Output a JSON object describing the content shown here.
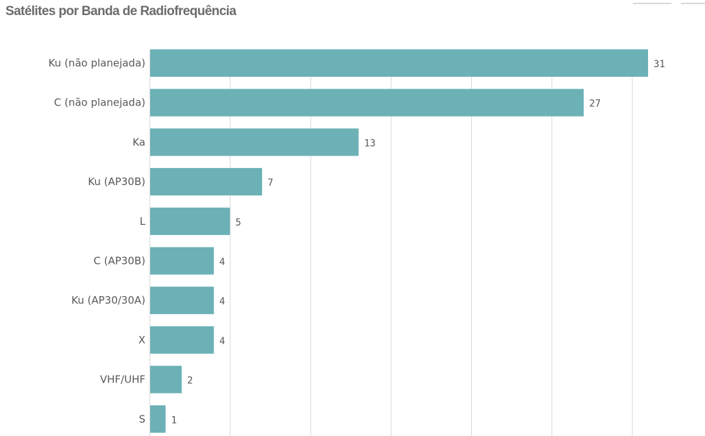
{
  "chart_data": {
    "type": "bar",
    "orientation": "horizontal",
    "title": "Satélites por Banda de Radiofrequência",
    "categories": [
      "Ku (não planejada)",
      "C (não planejada)",
      "Ka",
      "Ku (AP30B)",
      "L",
      "C (AP30B)",
      "Ku (AP30/30A)",
      "X",
      "VHF/UHF",
      "S"
    ],
    "values": [
      31,
      27,
      13,
      7,
      5,
      4,
      4,
      4,
      2,
      1
    ],
    "xlim": [
      0,
      35
    ],
    "grid": true,
    "bar_color": "#6bb1b6",
    "grid_color": "#d9d9d9",
    "text_color": "#595959",
    "title_color": "#6b6b6b"
  }
}
